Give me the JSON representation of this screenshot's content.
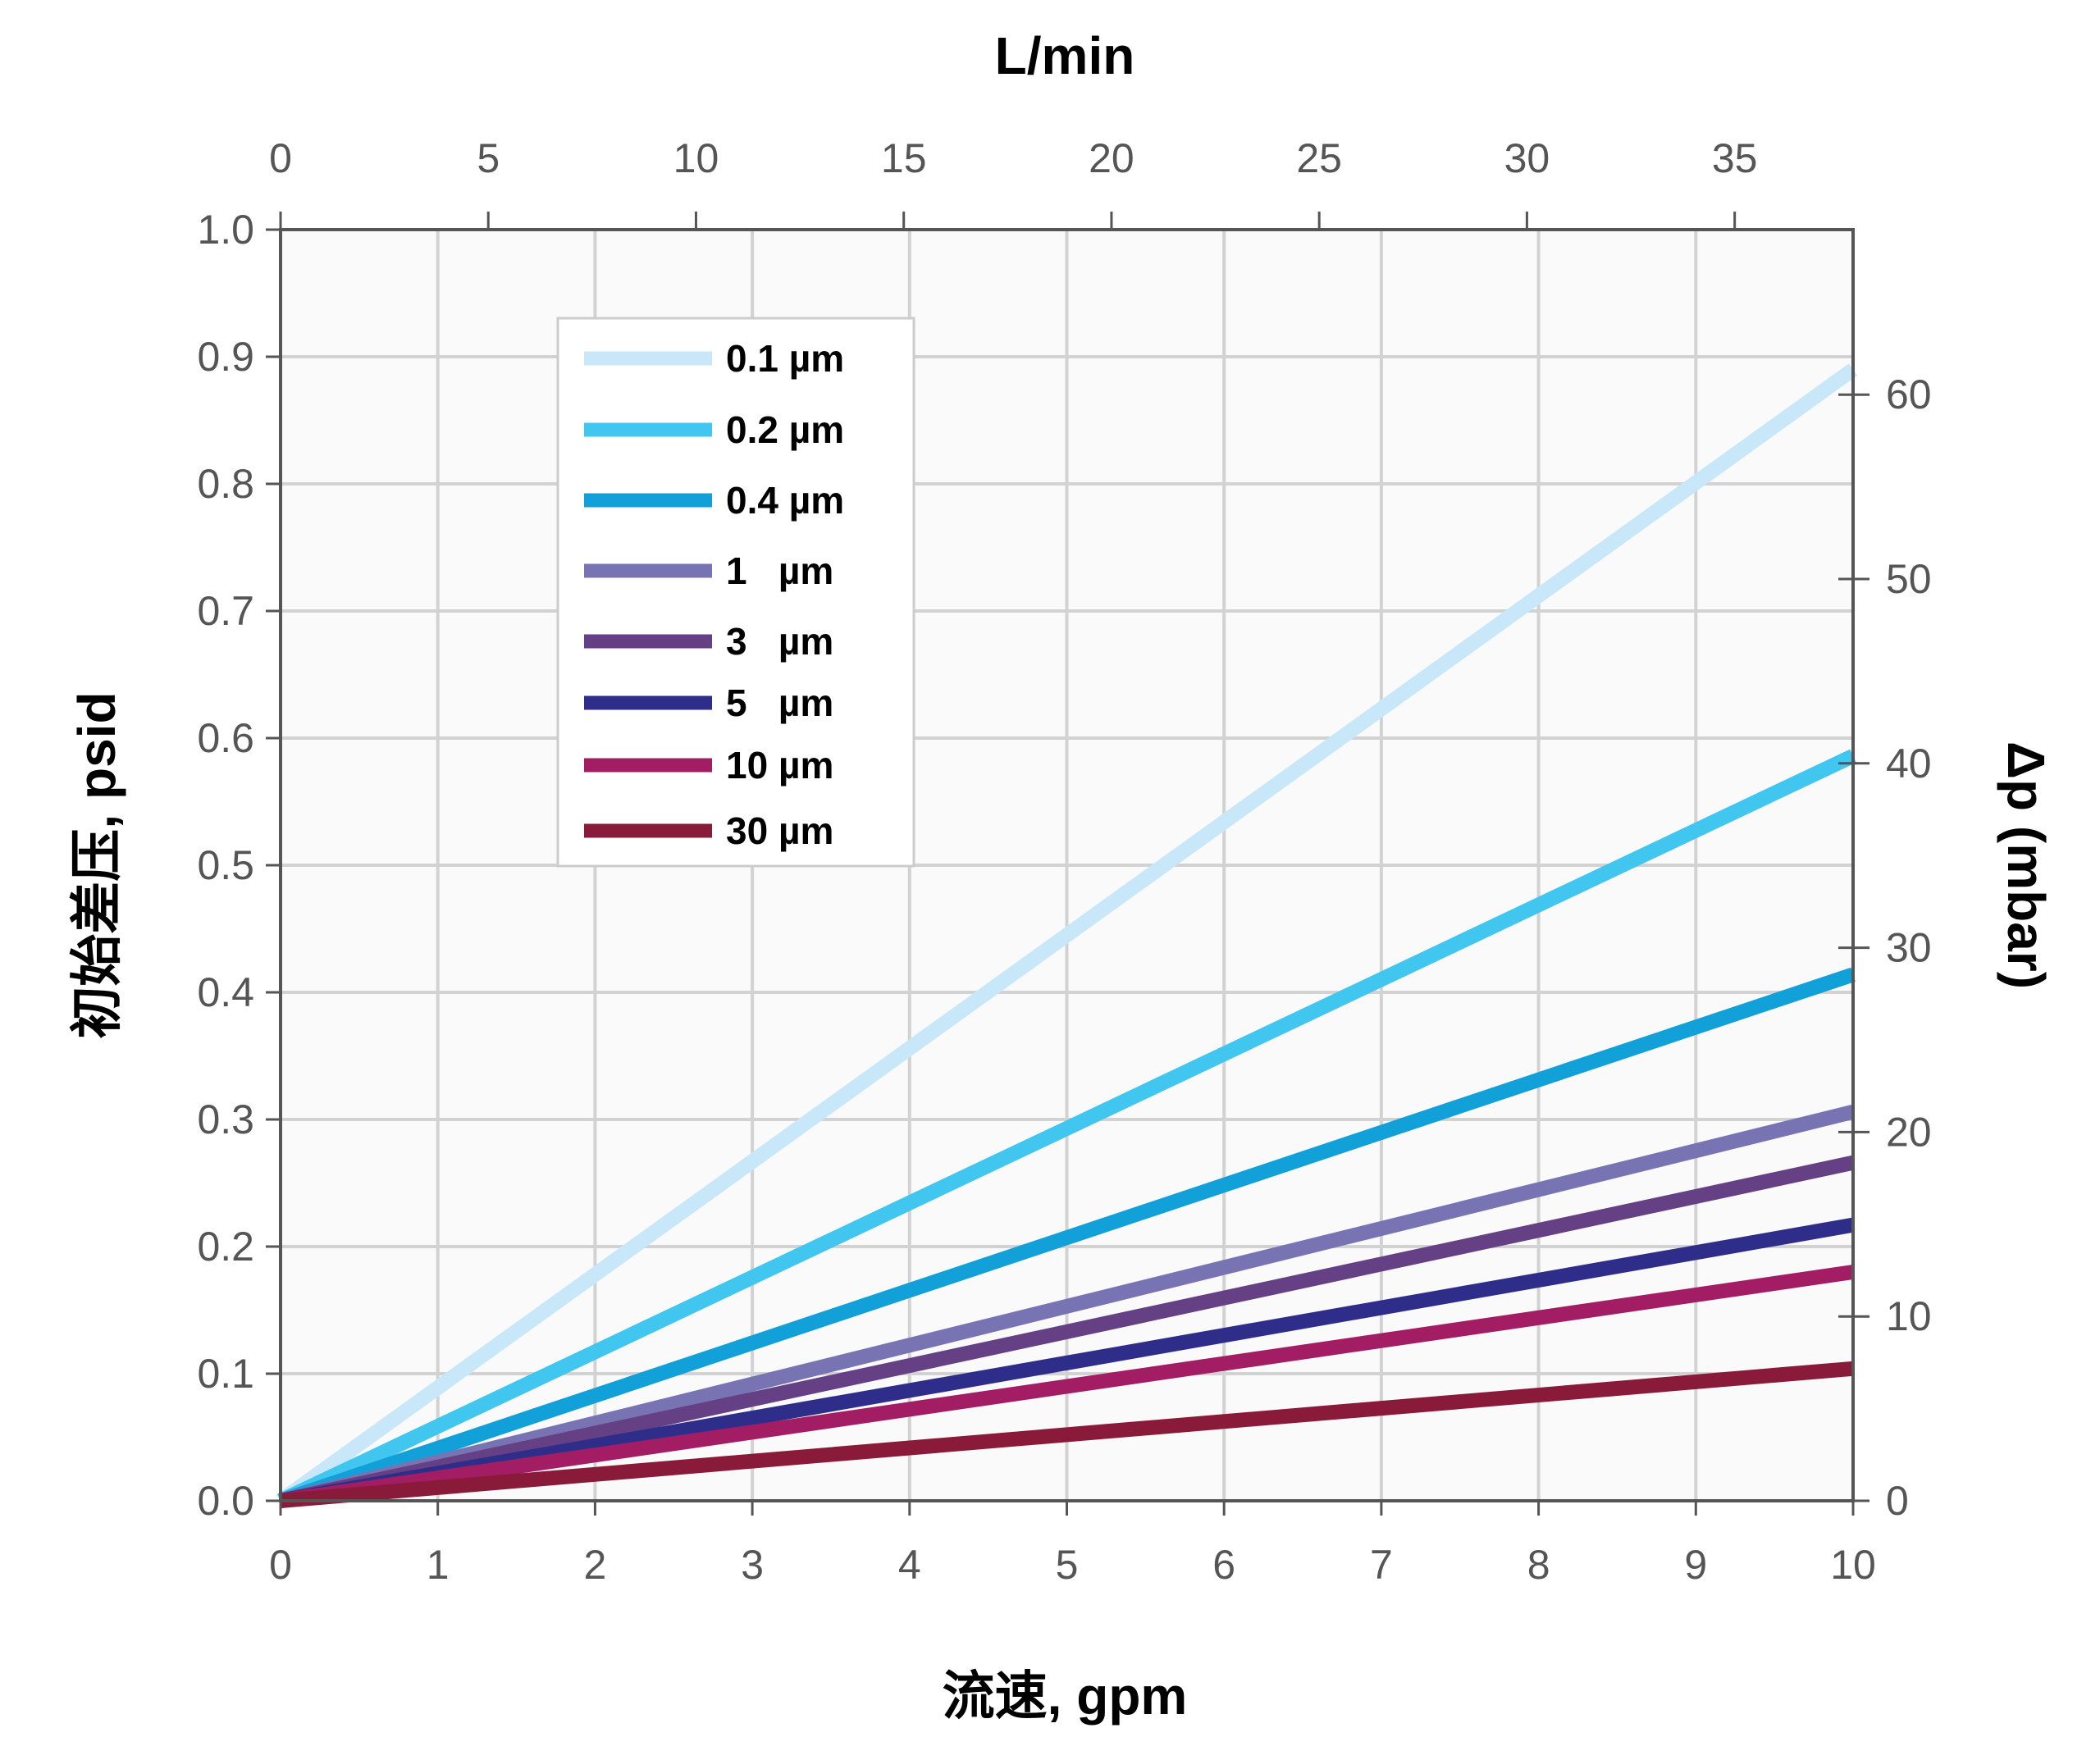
{
  "chart_data": {
    "type": "line",
    "x_bottom": {
      "label": "流速, gpm",
      "range": [
        0,
        10
      ],
      "ticks": [
        0,
        1,
        2,
        3,
        4,
        5,
        6,
        7,
        8,
        9,
        10
      ]
    },
    "x_top": {
      "label": "L/min",
      "range": [
        0,
        37.85
      ],
      "ticks": [
        0,
        5,
        10,
        15,
        20,
        25,
        30,
        35
      ]
    },
    "y_left": {
      "label": "初始差压, psid",
      "range": [
        0,
        1.0
      ],
      "ticks": [
        "0.0",
        "0.1",
        "0.2",
        "0.3",
        "0.4",
        "0.5",
        "0.6",
        "0.7",
        "0.8",
        "0.9",
        "1.0"
      ]
    },
    "y_right": {
      "label": "Δp (mbar)",
      "range": [
        0,
        68.95
      ],
      "ticks": [
        0,
        10,
        20,
        30,
        40,
        50,
        60
      ]
    },
    "grid": true,
    "legend_position": "top-left",
    "series": [
      {
        "name": "0.1 µm",
        "color": "#c8e8fa",
        "x": [
          0,
          10
        ],
        "y": [
          0,
          0.89
        ]
      },
      {
        "name": "0.2 µm",
        "color": "#41c6ef",
        "x": [
          0,
          10
        ],
        "y": [
          0,
          0.586
        ]
      },
      {
        "name": "0.4 µm",
        "color": "#12a0d9",
        "x": [
          0,
          10
        ],
        "y": [
          0,
          0.414
        ]
      },
      {
        "name": "1   µm",
        "color": "#7874b4",
        "x": [
          0,
          10
        ],
        "y": [
          0,
          0.306
        ]
      },
      {
        "name": "3   µm",
        "color": "#654084",
        "x": [
          0,
          10
        ],
        "y": [
          0,
          0.266
        ]
      },
      {
        "name": "5   µm",
        "color": "#2e2e8a",
        "x": [
          0,
          10
        ],
        "y": [
          0,
          0.217
        ]
      },
      {
        "name": "10 µm",
        "color": "#a21d63",
        "x": [
          0,
          10
        ],
        "y": [
          0,
          0.18
        ]
      },
      {
        "name": "30 µm",
        "color": "#8a1a3a",
        "x": [
          0,
          10
        ],
        "y": [
          0,
          0.104
        ]
      }
    ]
  }
}
